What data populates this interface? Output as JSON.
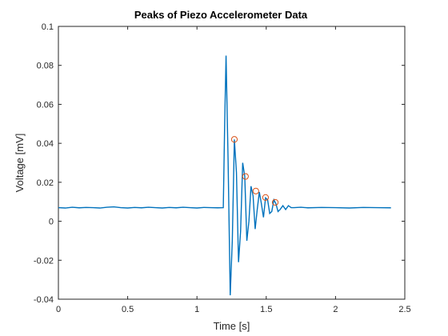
{
  "chart_data": {
    "type": "line",
    "title": "Peaks of Piezo Accelerometer Data",
    "xlabel": "Time [s]",
    "ylabel": "Voltage [mV]",
    "xlim": [
      0,
      2.5
    ],
    "ylim": [
      -0.04,
      0.1
    ],
    "xticks": [
      "0",
      "0.5",
      "1",
      "1.5",
      "2",
      "2.5"
    ],
    "yticks": [
      "-0.04",
      "-0.02",
      "0",
      "0.02",
      "0.04",
      "0.06",
      "0.08",
      "0.1"
    ],
    "grid": false,
    "line_color": "#0072BD",
    "peak_color": "#D95319",
    "series": [
      {
        "values_x": [
          0,
          0.05,
          0.1,
          0.15,
          0.2,
          0.25,
          0.3,
          0.35,
          0.4,
          0.45,
          0.5,
          0.55,
          0.6,
          0.65,
          0.7,
          0.75,
          0.8,
          0.85,
          0.9,
          0.95,
          1.0,
          1.05,
          1.1,
          1.15,
          1.19,
          1.2,
          1.21,
          1.225,
          1.24,
          1.255,
          1.27,
          1.285,
          1.3,
          1.315,
          1.33,
          1.345,
          1.36,
          1.375,
          1.39,
          1.405,
          1.42,
          1.435,
          1.45,
          1.465,
          1.48,
          1.495,
          1.51,
          1.525,
          1.54,
          1.555,
          1.57,
          1.585,
          1.6,
          1.62,
          1.64,
          1.66,
          1.68,
          1.7,
          1.75,
          1.8,
          1.9,
          2.0,
          2.1,
          2.2,
          2.3,
          2.4
        ],
        "values_y": [
          0.007,
          0.0068,
          0.0072,
          0.0069,
          0.0071,
          0.007,
          0.0068,
          0.0072,
          0.0074,
          0.007,
          0.0068,
          0.0071,
          0.0069,
          0.0072,
          0.007,
          0.0068,
          0.0071,
          0.0069,
          0.0072,
          0.007,
          0.0068,
          0.0071,
          0.007,
          0.0069,
          0.007,
          0.05,
          0.085,
          0.03,
          -0.038,
          -0.01,
          0.042,
          0.025,
          -0.021,
          -0.005,
          0.03,
          0.023,
          -0.01,
          0.0,
          0.018,
          0.013,
          -0.004,
          0.006,
          0.015,
          0.009,
          0.002,
          0.012,
          0.011,
          0.004,
          0.005,
          0.011,
          0.009,
          0.005,
          0.006,
          0.008,
          0.006,
          0.008,
          0.007,
          0.007,
          0.0072,
          0.0069,
          0.0071,
          0.007,
          0.0068,
          0.0071,
          0.007,
          0.0069
        ]
      }
    ],
    "peaks": {
      "x": [
        1.27,
        1.35,
        1.425,
        1.495,
        1.565
      ],
      "y": [
        0.042,
        0.023,
        0.0155,
        0.0122,
        0.0097
      ]
    }
  }
}
